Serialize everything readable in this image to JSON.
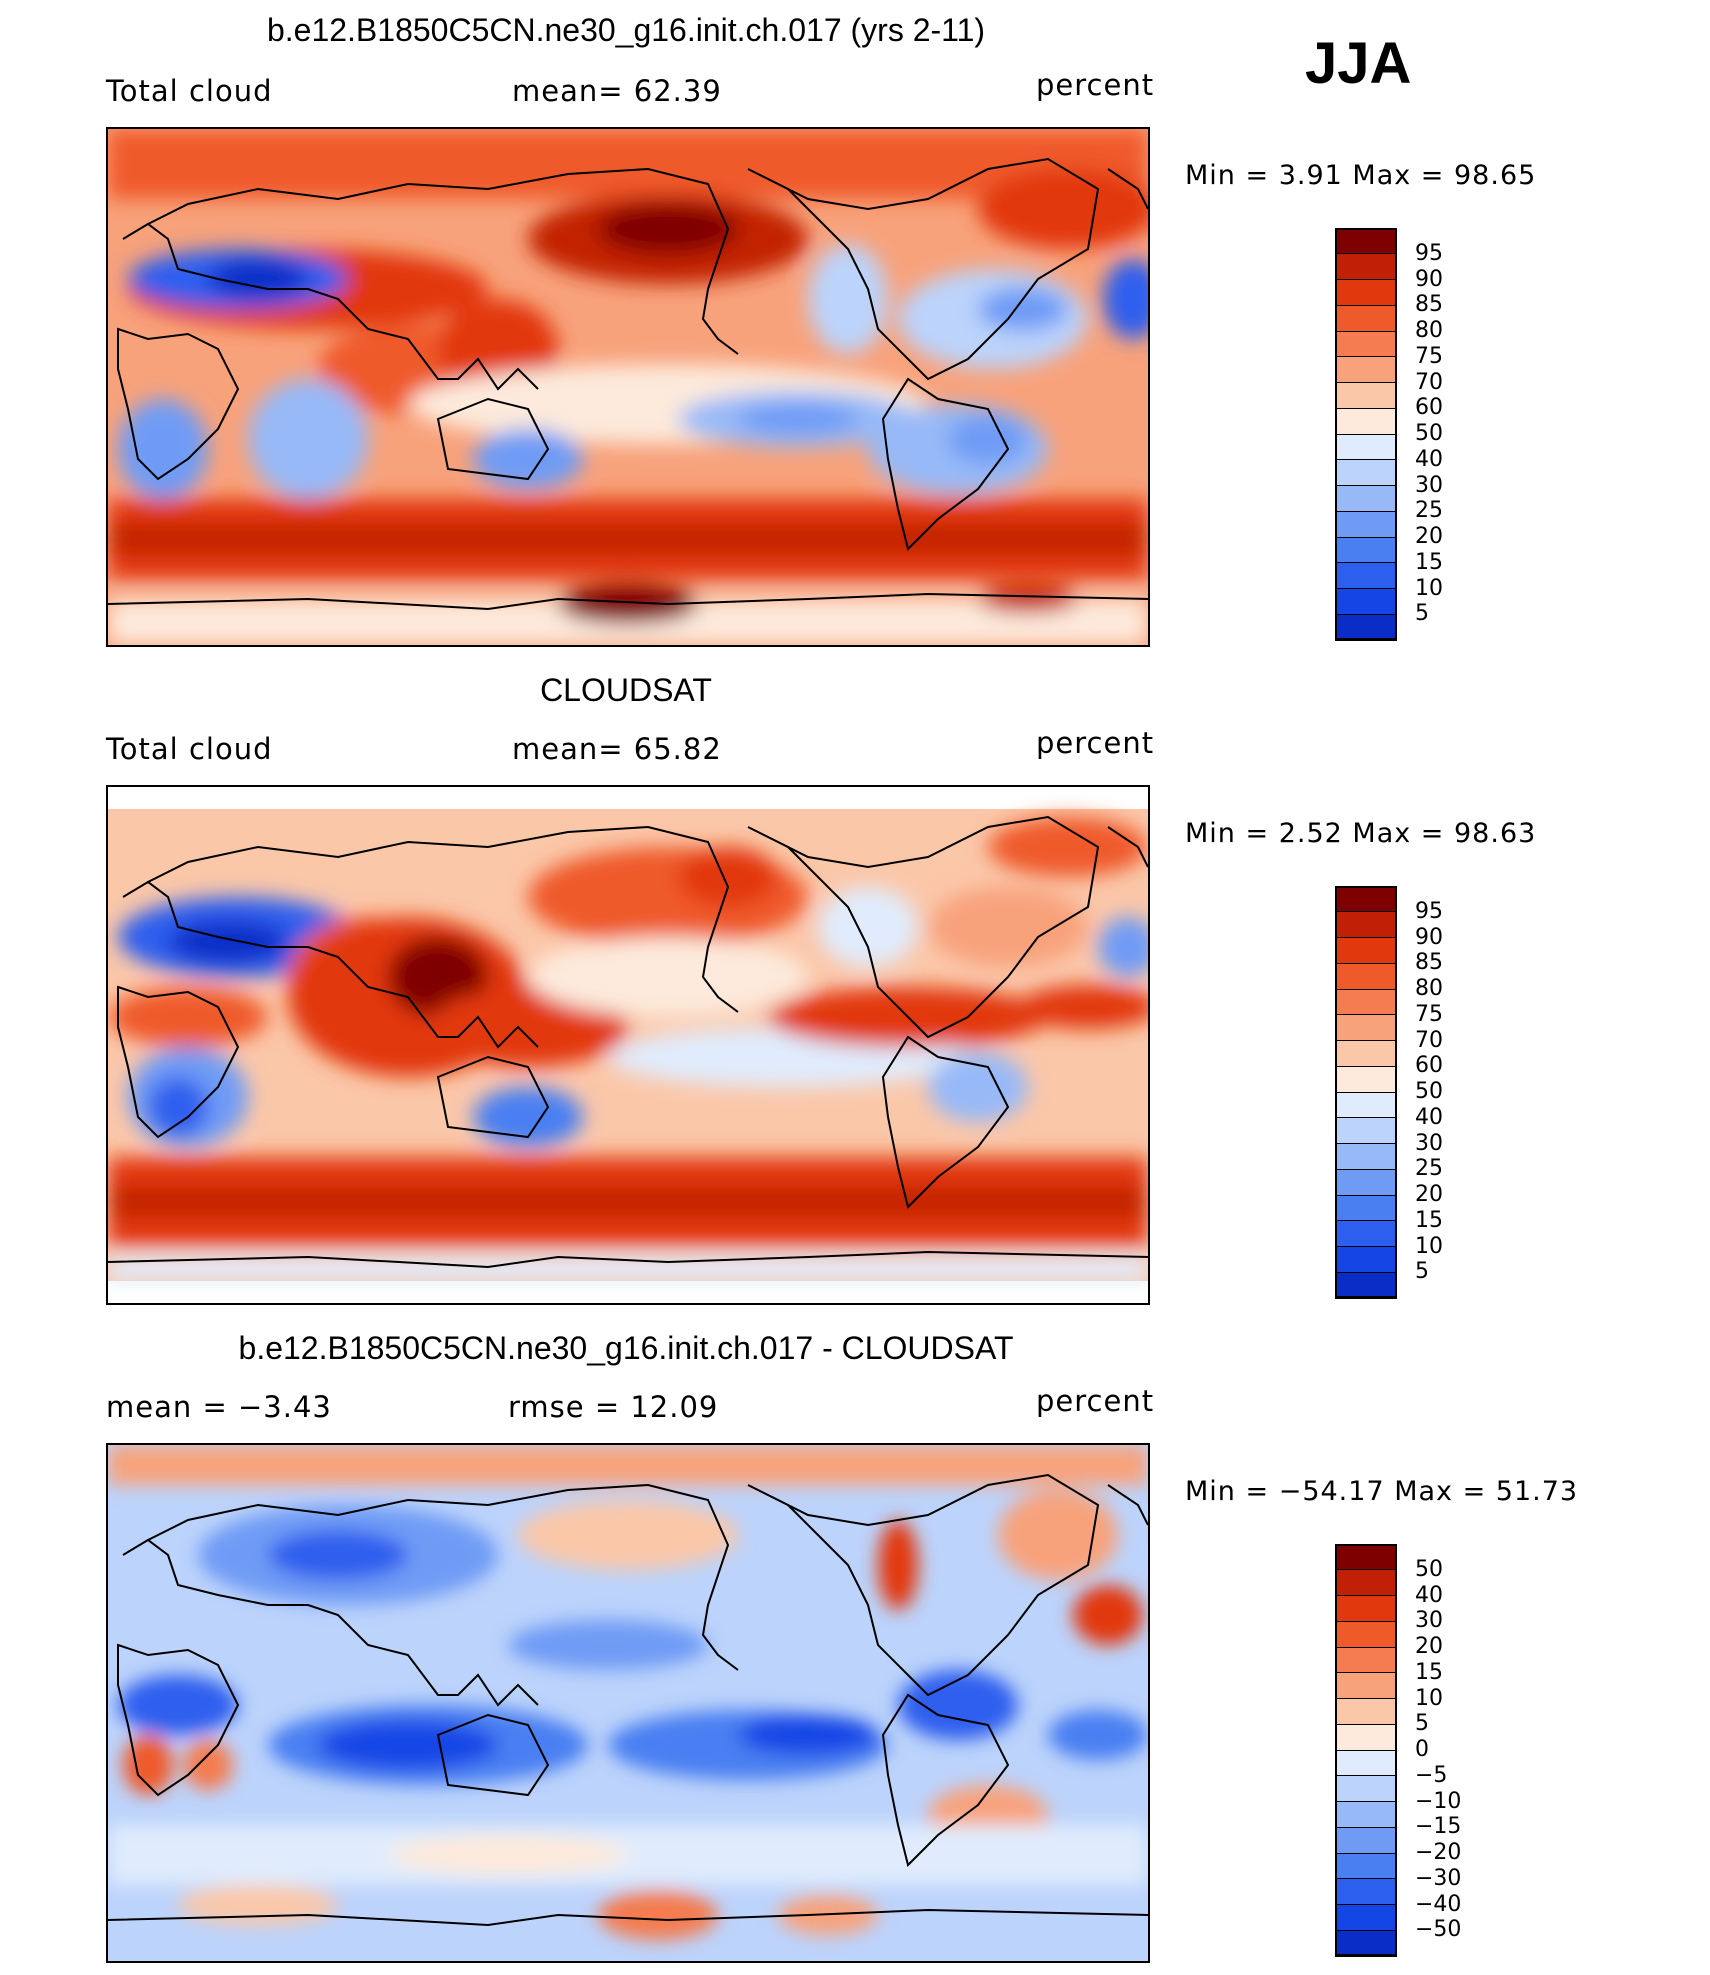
{
  "season": "JJA",
  "colors": {
    "abs_scale": [
      "#00007f",
      "#0a2dc8",
      "#1446e6",
      "#2d5fee",
      "#4a7ff2",
      "#6f9bf5",
      "#97b9f8",
      "#bcd3fb",
      "#e0ecfd",
      "#fdeadc",
      "#fbc7a9",
      "#f8a27b",
      "#f47c50",
      "#ef5a2a",
      "#e2380e",
      "#c22006",
      "#7f0000"
    ],
    "diff_scale": [
      "#00007f",
      "#0a2dc8",
      "#1446e6",
      "#2d5fee",
      "#4a7ff2",
      "#6f9bf5",
      "#97b9f8",
      "#bcd3fb",
      "#e0ecfd",
      "#fdeadc",
      "#fbc7a9",
      "#f8a27b",
      "#f47c50",
      "#ef5a2a",
      "#e2380e",
      "#c22006",
      "#7f0000"
    ]
  },
  "panels": [
    {
      "title": "b.e12.B1850C5CN.ne30_g16.init.ch.017 (yrs 2-11)",
      "left_label": "Total cloud",
      "center_label": "mean=   62.39",
      "right_label": "percent",
      "minmax": "Min  =     3.91  Max  =    98.65",
      "colorbar_labels": [
        "95",
        "90",
        "85",
        "80",
        "75",
        "70",
        "60",
        "50",
        "40",
        "30",
        "25",
        "20",
        "15",
        "10",
        "5"
      ]
    },
    {
      "title": "CLOUDSAT",
      "left_label": "Total cloud",
      "center_label": "mean=   65.82",
      "right_label": "percent",
      "minmax": "Min  =     2.52  Max  =    98.63",
      "colorbar_labels": [
        "95",
        "90",
        "85",
        "80",
        "75",
        "70",
        "60",
        "50",
        "40",
        "30",
        "25",
        "20",
        "15",
        "10",
        "5"
      ]
    },
    {
      "title": "b.e12.B1850C5CN.ne30_g16.init.ch.017 - CLOUDSAT",
      "left_label": "mean  =    −3.43",
      "center_label": "rmse  =    12.09",
      "right_label": "percent",
      "minmax": "Min  =  −54.17  Max  =    51.73",
      "colorbar_labels": [
        "50",
        "40",
        "30",
        "20",
        "15",
        "10",
        "5",
        "0",
        "−5",
        "−10",
        "−15",
        "−20",
        "−30",
        "−40",
        "−50"
      ]
    }
  ]
}
